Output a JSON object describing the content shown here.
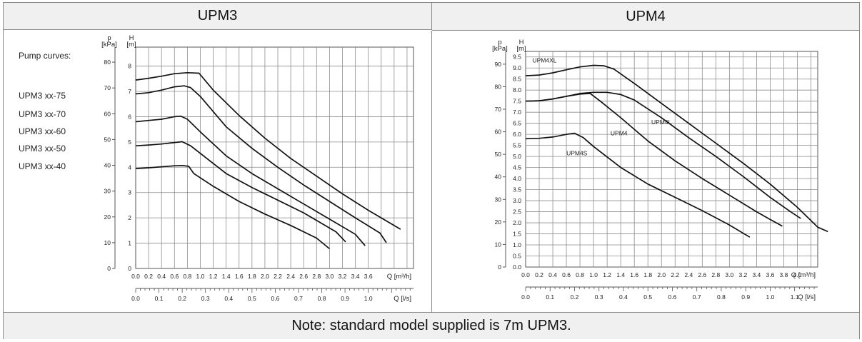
{
  "headers": {
    "left": "UPM3",
    "right": "UPM4"
  },
  "note": "Note: standard model supplied is 7m UPM3.",
  "legend": {
    "title": "Pump curves:",
    "items": [
      "UPM3 xx-75",
      "UPM3 xx-70",
      "UPM3 xx-60",
      "UPM3 xx-50",
      "UPM3 xx-40"
    ]
  },
  "axis_labels": {
    "p": "p",
    "p_unit": "[kPa]",
    "h": "H",
    "h_unit": "[m]",
    "q_m3h": "Q [m³/h]",
    "q_ls": "Q [l/s]"
  },
  "chart_data": [
    {
      "type": "line",
      "title": "UPM3",
      "xlabel": "Q [m³/h]",
      "x2label": "Q [l/s]",
      "ylabel": "H [m]",
      "y2label": "p [kPa]",
      "xlim": [
        0,
        4.3
      ],
      "ylim": [
        0,
        8.75
      ],
      "x_ticks": [
        0.0,
        0.2,
        0.4,
        0.6,
        0.8,
        1.0,
        1.2,
        1.4,
        1.6,
        1.8,
        2.0,
        2.2,
        2.4,
        2.6,
        2.8,
        3.0,
        3.2,
        3.4,
        3.6
      ],
      "x2_ticks": [
        0.0,
        0.1,
        0.2,
        0.3,
        0.4,
        0.5,
        0.6,
        0.7,
        0.8,
        0.9,
        1.0
      ],
      "y_ticks": [
        0,
        1,
        2,
        3,
        4,
        5,
        6,
        7,
        8
      ],
      "p_ticks": [
        0,
        10,
        20,
        30,
        40,
        50,
        60,
        70,
        80
      ],
      "grid": true,
      "series": [
        {
          "points": [
            [
              0,
              7.45
            ],
            [
              0.2,
              7.52
            ],
            [
              0.4,
              7.6
            ],
            [
              0.6,
              7.7
            ],
            [
              0.8,
              7.74
            ],
            [
              0.98,
              7.72
            ],
            [
              1.2,
              7.05
            ],
            [
              1.6,
              6.05
            ],
            [
              2.0,
              5.15
            ],
            [
              2.4,
              4.35
            ],
            [
              2.8,
              3.65
            ],
            [
              3.2,
              2.95
            ],
            [
              3.6,
              2.3
            ],
            [
              4.1,
              1.55
            ]
          ]
        },
        {
          "points": [
            [
              0,
              6.9
            ],
            [
              0.2,
              6.95
            ],
            [
              0.4,
              7.05
            ],
            [
              0.6,
              7.18
            ],
            [
              0.75,
              7.22
            ],
            [
              0.85,
              7.15
            ],
            [
              1.0,
              6.8
            ],
            [
              1.4,
              5.6
            ],
            [
              1.8,
              4.75
            ],
            [
              2.2,
              4.0
            ],
            [
              2.6,
              3.3
            ],
            [
              3.0,
              2.65
            ],
            [
              3.4,
              2.0
            ],
            [
              3.78,
              1.4
            ],
            [
              3.88,
              1.02
            ]
          ]
        },
        {
          "points": [
            [
              0,
              5.8
            ],
            [
              0.2,
              5.85
            ],
            [
              0.4,
              5.9
            ],
            [
              0.6,
              6.0
            ],
            [
              0.7,
              6.02
            ],
            [
              0.8,
              5.9
            ],
            [
              1.0,
              5.4
            ],
            [
              1.4,
              4.45
            ],
            [
              1.8,
              3.75
            ],
            [
              2.2,
              3.15
            ],
            [
              2.6,
              2.55
            ],
            [
              3.0,
              1.95
            ],
            [
              3.4,
              1.35
            ],
            [
              3.55,
              0.9
            ]
          ]
        },
        {
          "points": [
            [
              0,
              4.85
            ],
            [
              0.2,
              4.88
            ],
            [
              0.4,
              4.92
            ],
            [
              0.6,
              4.98
            ],
            [
              0.72,
              5.01
            ],
            [
              0.85,
              4.85
            ],
            [
              1.0,
              4.55
            ],
            [
              1.4,
              3.75
            ],
            [
              1.8,
              3.2
            ],
            [
              2.2,
              2.7
            ],
            [
              2.6,
              2.2
            ],
            [
              2.9,
              1.75
            ],
            [
              3.1,
              1.45
            ],
            [
              3.25,
              1.05
            ]
          ]
        },
        {
          "points": [
            [
              0,
              3.95
            ],
            [
              0.2,
              3.98
            ],
            [
              0.4,
              4.02
            ],
            [
              0.6,
              4.06
            ],
            [
              0.72,
              4.07
            ],
            [
              0.82,
              4.04
            ],
            [
              0.9,
              3.75
            ],
            [
              1.2,
              3.25
            ],
            [
              1.6,
              2.65
            ],
            [
              2.0,
              2.15
            ],
            [
              2.4,
              1.7
            ],
            [
              2.8,
              1.2
            ],
            [
              3.0,
              0.78
            ]
          ]
        }
      ]
    },
    {
      "type": "line",
      "title": "UPM4",
      "xlabel": "Q [m³/h]",
      "x2label": "Q [l/s]",
      "ylabel": "H [m]",
      "y2label": "p [kPa]",
      "xlim": [
        0,
        4.3
      ],
      "ylim": [
        0,
        9.75
      ],
      "x_ticks": [
        0.0,
        0.2,
        0.4,
        0.6,
        0.8,
        1.0,
        1.2,
        1.4,
        1.6,
        1.8,
        2.0,
        2.2,
        2.4,
        2.6,
        2.8,
        3.0,
        3.2,
        3.4,
        3.6,
        3.8,
        4.0
      ],
      "x2_ticks": [
        0.0,
        0.1,
        0.2,
        0.3,
        0.4,
        0.5,
        0.6,
        0.7,
        0.8,
        0.9,
        1.0,
        1.1
      ],
      "y_ticks": [
        0.0,
        0.5,
        1.0,
        1.5,
        2.0,
        2.5,
        3.0,
        3.5,
        4.0,
        4.5,
        5.0,
        5.5,
        6.0,
        6.5,
        7.0,
        7.5,
        8.0,
        8.5,
        9.0,
        9.5
      ],
      "p_ticks": [
        0,
        10,
        20,
        30,
        40,
        50,
        60,
        70,
        80,
        90
      ],
      "grid": true,
      "series": [
        {
          "name": "UPM4XL",
          "points": [
            [
              0,
              8.65
            ],
            [
              0.2,
              8.68
            ],
            [
              0.4,
              8.78
            ],
            [
              0.6,
              8.92
            ],
            [
              0.8,
              9.05
            ],
            [
              1.0,
              9.12
            ],
            [
              1.15,
              9.1
            ],
            [
              1.3,
              8.95
            ],
            [
              1.6,
              8.3
            ],
            [
              2.0,
              7.4
            ],
            [
              2.4,
              6.5
            ],
            [
              2.8,
              5.6
            ],
            [
              3.2,
              4.7
            ],
            [
              3.6,
              3.75
            ],
            [
              4.0,
              2.7
            ],
            [
              4.3,
              1.8
            ],
            [
              4.45,
              1.6
            ]
          ]
        },
        {
          "name": "UPM4L",
          "points": [
            [
              0,
              7.5
            ],
            [
              0.2,
              7.52
            ],
            [
              0.4,
              7.6
            ],
            [
              0.6,
              7.72
            ],
            [
              0.8,
              7.85
            ],
            [
              1.0,
              7.9
            ],
            [
              1.2,
              7.9
            ],
            [
              1.4,
              7.8
            ],
            [
              1.6,
              7.55
            ],
            [
              2.0,
              6.75
            ],
            [
              2.4,
              5.85
            ],
            [
              2.8,
              5.0
            ],
            [
              3.2,
              4.1
            ],
            [
              3.6,
              3.15
            ],
            [
              3.9,
              2.5
            ],
            [
              4.05,
              2.2
            ]
          ]
        },
        {
          "name": "UPM4",
          "points": [
            [
              0,
              7.5
            ],
            [
              0.2,
              7.52
            ],
            [
              0.4,
              7.6
            ],
            [
              0.6,
              7.72
            ],
            [
              0.8,
              7.82
            ],
            [
              0.95,
              7.85
            ],
            [
              1.1,
              7.5
            ],
            [
              1.4,
              6.75
            ],
            [
              1.8,
              5.7
            ],
            [
              2.2,
              4.8
            ],
            [
              2.6,
              4.0
            ],
            [
              3.0,
              3.25
            ],
            [
              3.4,
              2.5
            ],
            [
              3.6,
              2.15
            ],
            [
              3.78,
              1.85
            ]
          ]
        },
        {
          "name": "UPM4S",
          "points": [
            [
              0,
              5.8
            ],
            [
              0.2,
              5.82
            ],
            [
              0.4,
              5.88
            ],
            [
              0.6,
              6.0
            ],
            [
              0.72,
              6.05
            ],
            [
              0.85,
              5.85
            ],
            [
              1.0,
              5.45
            ],
            [
              1.4,
              4.5
            ],
            [
              1.8,
              3.75
            ],
            [
              2.2,
              3.15
            ],
            [
              2.6,
              2.55
            ],
            [
              3.0,
              1.9
            ],
            [
              3.3,
              1.35
            ]
          ]
        }
      ]
    }
  ]
}
